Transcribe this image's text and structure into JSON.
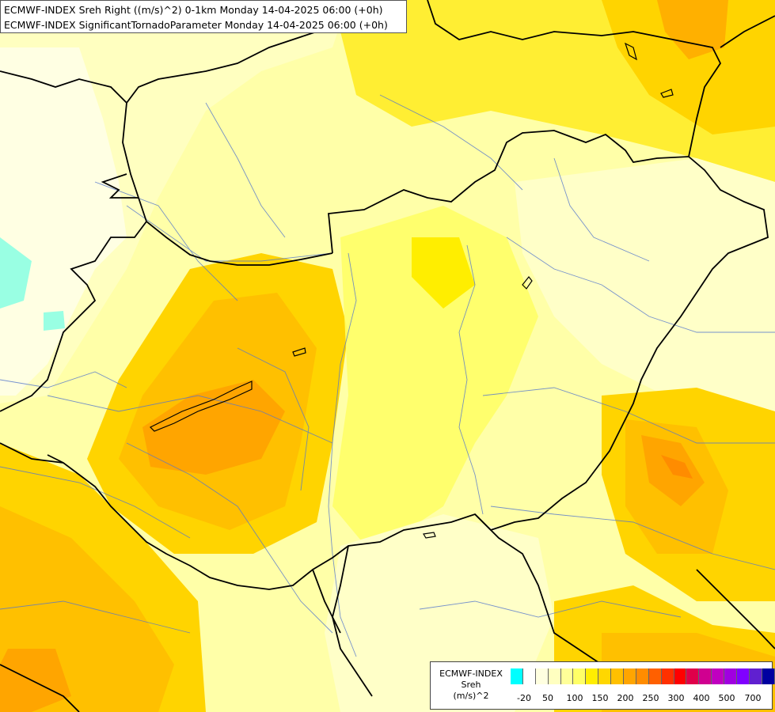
{
  "title": {
    "line1": "ECMWF-INDEX Sreh Right ((m/s)^2) 0-1km Monday 14-04-2025 06:00 (+0h)",
    "line2": "ECMWF-INDEX SignificantTornadoParameter Monday 14-04-2025 06:00 (+0h)"
  },
  "legend": {
    "title_line1": "ECMWF-INDEX",
    "title_line2": "Sreh",
    "title_line3": "(m/s)^2",
    "colors": [
      "#00ffff",
      "#ffffff",
      "#ffffe0",
      "#ffffc0",
      "#ffff99",
      "#ffff66",
      "#ffee00",
      "#ffd700",
      "#ffc000",
      "#ffa500",
      "#ff8c00",
      "#ff6000",
      "#ff3000",
      "#ff0000",
      "#e0004a",
      "#d00090",
      "#c000c0",
      "#a000e0",
      "#8000ff",
      "#6020d0",
      "#0000a0"
    ],
    "ticks": [
      "-20",
      "50",
      "100",
      "150",
      "200",
      "250",
      "300",
      "400",
      "500",
      "700"
    ]
  }
}
